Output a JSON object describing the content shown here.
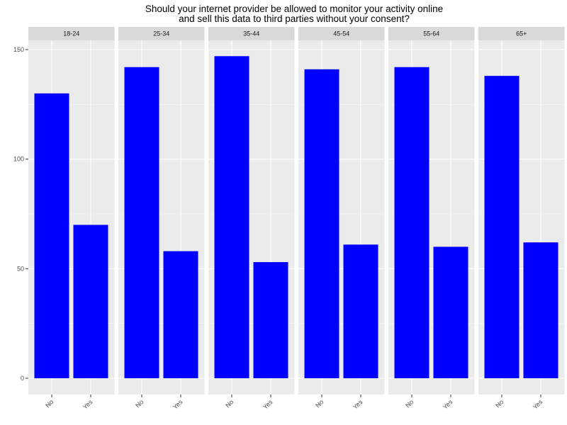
{
  "chart_data": {
    "type": "bar",
    "title_lines": [
      "Should your internet provider be allowed to monitor your activity online",
      "and sell this data to third parties without your consent?"
    ],
    "facet_variable": "age group",
    "facets": [
      {
        "label": "18-24",
        "categories": [
          "No",
          "Yes"
        ],
        "values": [
          130,
          70
        ]
      },
      {
        "label": "25-34",
        "categories": [
          "No",
          "Yes"
        ],
        "values": [
          142,
          58
        ]
      },
      {
        "label": "35-44",
        "categories": [
          "No",
          "Yes"
        ],
        "values": [
          147,
          53
        ]
      },
      {
        "label": "45-54",
        "categories": [
          "No",
          "Yes"
        ],
        "values": [
          141,
          61
        ]
      },
      {
        "label": "55-64",
        "categories": [
          "No",
          "Yes"
        ],
        "values": [
          142,
          60
        ]
      },
      {
        "label": "65+",
        "categories": [
          "No",
          "Yes"
        ],
        "values": [
          138,
          62
        ]
      }
    ],
    "xlabel": "",
    "ylabel": "",
    "ylim": [
      0,
      150
    ],
    "yticks": [
      0,
      50,
      100,
      150
    ],
    "grid": true,
    "legend": "none",
    "bar_color": "#0000FF",
    "panel_background": "#EBEBEB",
    "strip_background": "#D9D9D9"
  }
}
